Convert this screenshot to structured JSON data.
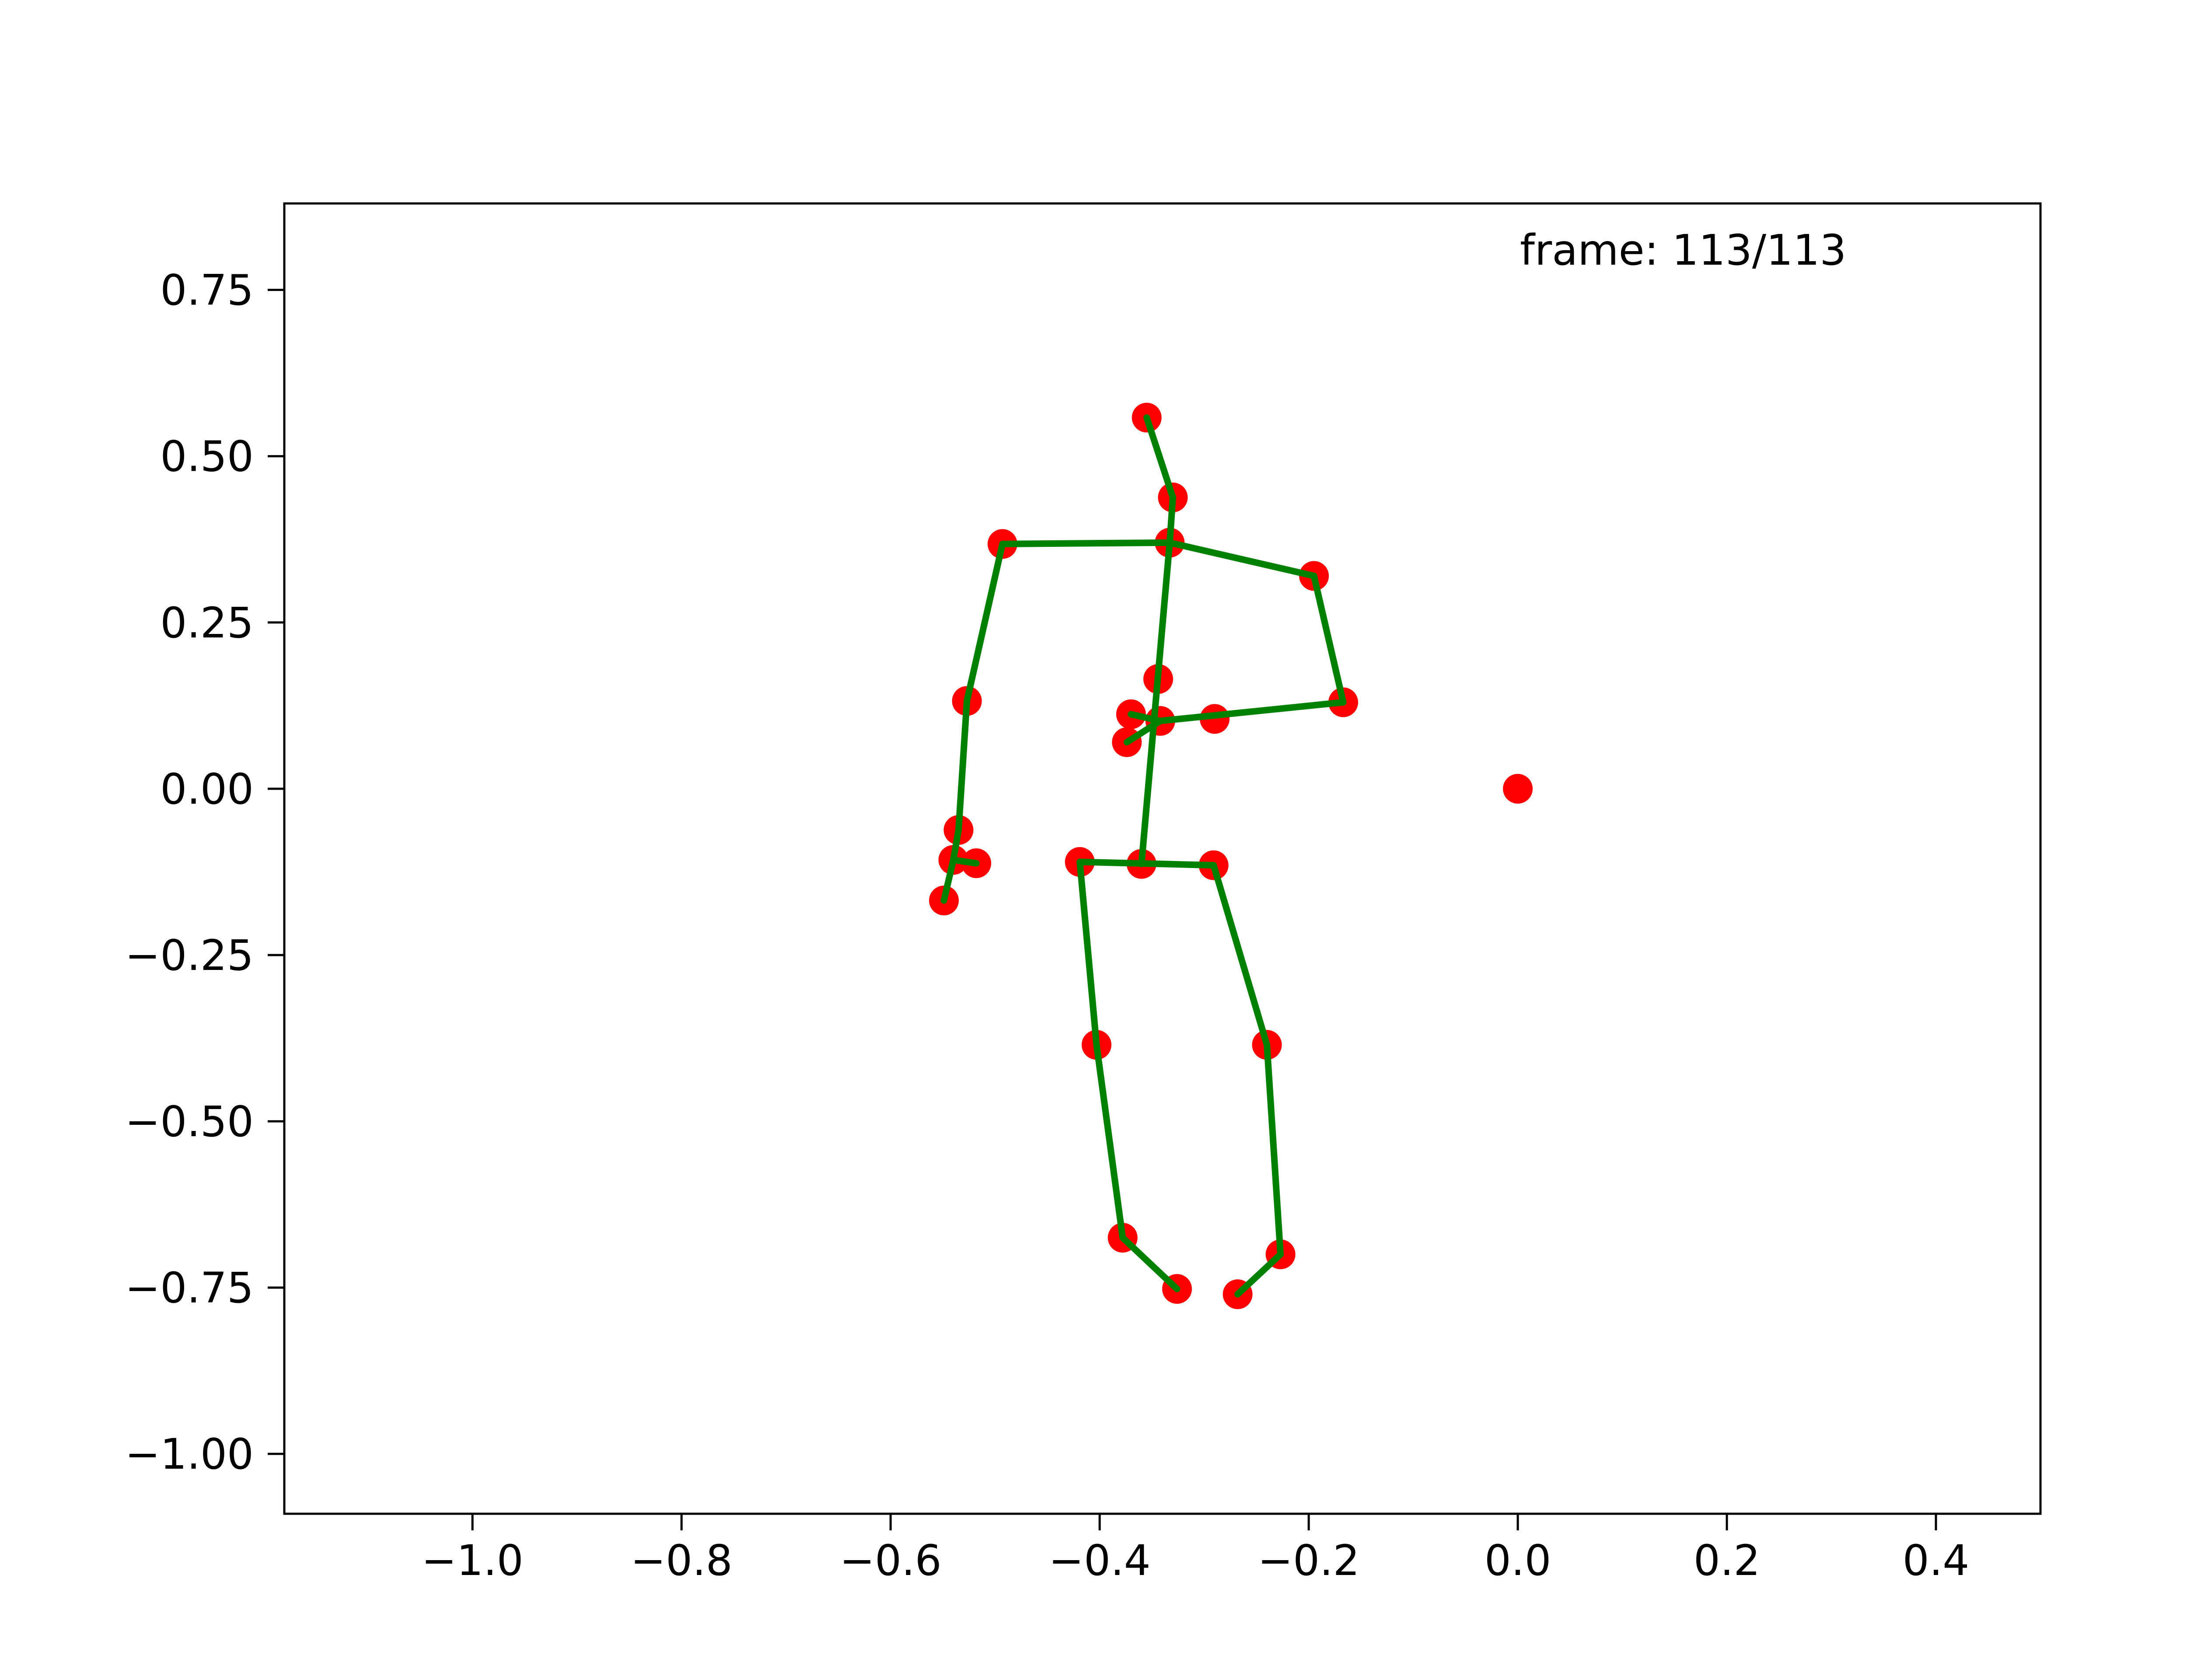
{
  "chart_data": {
    "type": "scatter",
    "title": "",
    "xlabel": "",
    "ylabel": "",
    "xlim": [
      -1.18,
      0.5
    ],
    "ylim": [
      -1.09,
      0.88
    ],
    "xticks": [
      -1.0,
      -0.8,
      -0.6,
      -0.4,
      -0.2,
      0.0,
      0.2,
      0.4
    ],
    "xtick_labels": [
      "−1.0",
      "−0.8",
      "−0.6",
      "−0.4",
      "−0.2",
      "0.0",
      "0.2",
      "0.4"
    ],
    "yticks": [
      0.75,
      0.5,
      0.25,
      0.0,
      -0.25,
      -0.5,
      -0.75,
      -1.0
    ],
    "ytick_labels": [
      "0.75",
      "0.50",
      "0.25",
      "0.00",
      "−0.25",
      "−0.50",
      "−0.75",
      "−1.00"
    ],
    "grid": false,
    "annotation": "frame: 113/113",
    "colors": {
      "points": "#ff0000",
      "skeleton": "#008000",
      "axes": "#000000"
    },
    "points": [
      [
        -0.355,
        0.558
      ],
      [
        -0.33,
        0.438
      ],
      [
        -0.333,
        0.37
      ],
      [
        -0.493,
        0.368
      ],
      [
        -0.195,
        0.32
      ],
      [
        -0.527,
        0.132
      ],
      [
        -0.167,
        0.13
      ],
      [
        -0.344,
        0.165
      ],
      [
        -0.37,
        0.112
      ],
      [
        -0.342,
        0.102
      ],
      [
        -0.29,
        0.105
      ],
      [
        -0.374,
        0.07
      ],
      [
        -0.535,
        -0.062
      ],
      [
        -0.54,
        -0.107
      ],
      [
        -0.518,
        -0.112
      ],
      [
        -0.549,
        -0.168
      ],
      [
        -0.419,
        -0.11
      ],
      [
        -0.36,
        -0.113
      ],
      [
        -0.291,
        -0.115
      ],
      [
        -0.403,
        -0.385
      ],
      [
        -0.24,
        -0.385
      ],
      [
        -0.378,
        -0.675
      ],
      [
        -0.227,
        -0.7
      ],
      [
        -0.326,
        -0.752
      ],
      [
        -0.268,
        -0.76
      ],
      [
        0.0,
        0.0
      ]
    ],
    "bones": [
      [
        [
          -0.355,
          0.558
        ],
        [
          -0.33,
          0.438
        ]
      ],
      [
        [
          -0.33,
          0.438
        ],
        [
          -0.333,
          0.37
        ]
      ],
      [
        [
          -0.493,
          0.368
        ],
        [
          -0.333,
          0.37
        ]
      ],
      [
        [
          -0.333,
          0.37
        ],
        [
          -0.195,
          0.32
        ]
      ],
      [
        [
          -0.493,
          0.368
        ],
        [
          -0.527,
          0.132
        ]
      ],
      [
        [
          -0.527,
          0.132
        ],
        [
          -0.535,
          -0.062
        ]
      ],
      [
        [
          -0.535,
          -0.062
        ],
        [
          -0.54,
          -0.107
        ]
      ],
      [
        [
          -0.54,
          -0.107
        ],
        [
          -0.518,
          -0.112
        ]
      ],
      [
        [
          -0.54,
          -0.107
        ],
        [
          -0.549,
          -0.168
        ]
      ],
      [
        [
          -0.195,
          0.32
        ],
        [
          -0.167,
          0.13
        ]
      ],
      [
        [
          -0.167,
          0.13
        ],
        [
          -0.342,
          0.102
        ]
      ],
      [
        [
          -0.342,
          0.102
        ],
        [
          -0.37,
          0.112
        ]
      ],
      [
        [
          -0.342,
          0.102
        ],
        [
          -0.374,
          0.07
        ]
      ],
      [
        [
          -0.333,
          0.37
        ],
        [
          -0.36,
          -0.113
        ]
      ],
      [
        [
          -0.419,
          -0.11
        ],
        [
          -0.291,
          -0.115
        ]
      ],
      [
        [
          -0.419,
          -0.11
        ],
        [
          -0.403,
          -0.385
        ]
      ],
      [
        [
          -0.403,
          -0.385
        ],
        [
          -0.378,
          -0.675
        ]
      ],
      [
        [
          -0.378,
          -0.675
        ],
        [
          -0.326,
          -0.752
        ]
      ],
      [
        [
          -0.291,
          -0.115
        ],
        [
          -0.24,
          -0.385
        ]
      ],
      [
        [
          -0.24,
          -0.385
        ],
        [
          -0.227,
          -0.7
        ]
      ],
      [
        [
          -0.227,
          -0.7
        ],
        [
          -0.268,
          -0.76
        ]
      ]
    ]
  }
}
